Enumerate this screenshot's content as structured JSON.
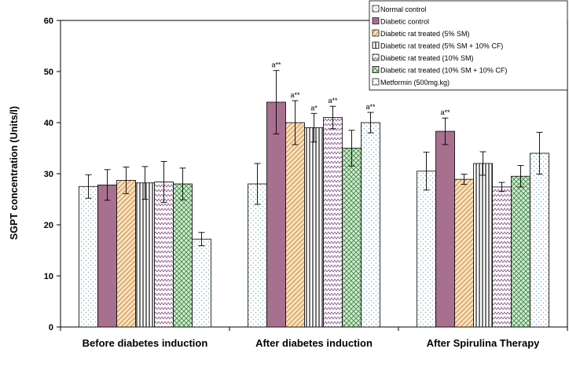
{
  "chart_data": {
    "type": "bar",
    "title": "",
    "xlabel": "",
    "ylabel": "SGPT concentration (Units/l)",
    "ylim": [
      0,
      60
    ],
    "yticks": [
      0,
      10,
      20,
      30,
      40,
      50,
      60
    ],
    "grid": false,
    "legend_position": "top-right",
    "categories": [
      "Before diabetes induction",
      "After diabetes induction",
      "After Spirulina Therapy"
    ],
    "series": [
      {
        "name": "Normal control",
        "values": [
          27.5,
          28.0,
          30.5
        ],
        "errors": [
          2.3,
          4.0,
          3.7
        ],
        "annotations": [
          "",
          "",
          ""
        ],
        "color": "#ffffff",
        "pattern": "dots-teal"
      },
      {
        "name": "Diabetic control",
        "values": [
          27.8,
          44.0,
          38.3
        ],
        "errors": [
          3.0,
          6.2,
          2.6
        ],
        "annotations": [
          "",
          "a**",
          "a**"
        ],
        "color": "#a8708f",
        "pattern": "solid"
      },
      {
        "name": "Diabetic rat treated (5% SM)",
        "values": [
          28.7,
          40.0,
          28.9
        ],
        "errors": [
          2.6,
          4.3,
          1.0
        ],
        "annotations": [
          "",
          "a**",
          ""
        ],
        "color": "#f2d7a8",
        "pattern": "diag-orange"
      },
      {
        "name": "Diabetic rat treated  (5% SM + 10% CF)",
        "values": [
          28.2,
          39.0,
          32.0
        ],
        "errors": [
          3.2,
          2.8,
          2.3
        ],
        "annotations": [
          "",
          "a*",
          ""
        ],
        "color": "#ffffff",
        "pattern": "vlines-black"
      },
      {
        "name": "Diabetic rat treated (10% SM)",
        "values": [
          28.4,
          41.0,
          27.4
        ],
        "errors": [
          4.0,
          2.2,
          0.9
        ],
        "annotations": [
          "",
          "a**",
          ""
        ],
        "color": "#ffffff",
        "pattern": "zigzag-purple"
      },
      {
        "name": "Diabetic rat treated (10% SM + 10% CF)",
        "values": [
          28.0,
          35.0,
          29.5
        ],
        "errors": [
          3.1,
          3.5,
          2.1
        ],
        "annotations": [
          "",
          "",
          ""
        ],
        "color": "#cde8c8",
        "pattern": "weave-green"
      },
      {
        "name": "Metformin (500mg.kg)",
        "values": [
          17.2,
          40.0,
          34.0
        ],
        "errors": [
          1.3,
          2.0,
          4.1
        ],
        "annotations": [
          "",
          "a**",
          ""
        ],
        "color": "#ffffff",
        "pattern": "dots-blue"
      }
    ]
  },
  "colors": {
    "axis": "#000000",
    "plot_background": "#ffffff",
    "diabetic_control": "#a8708f"
  }
}
